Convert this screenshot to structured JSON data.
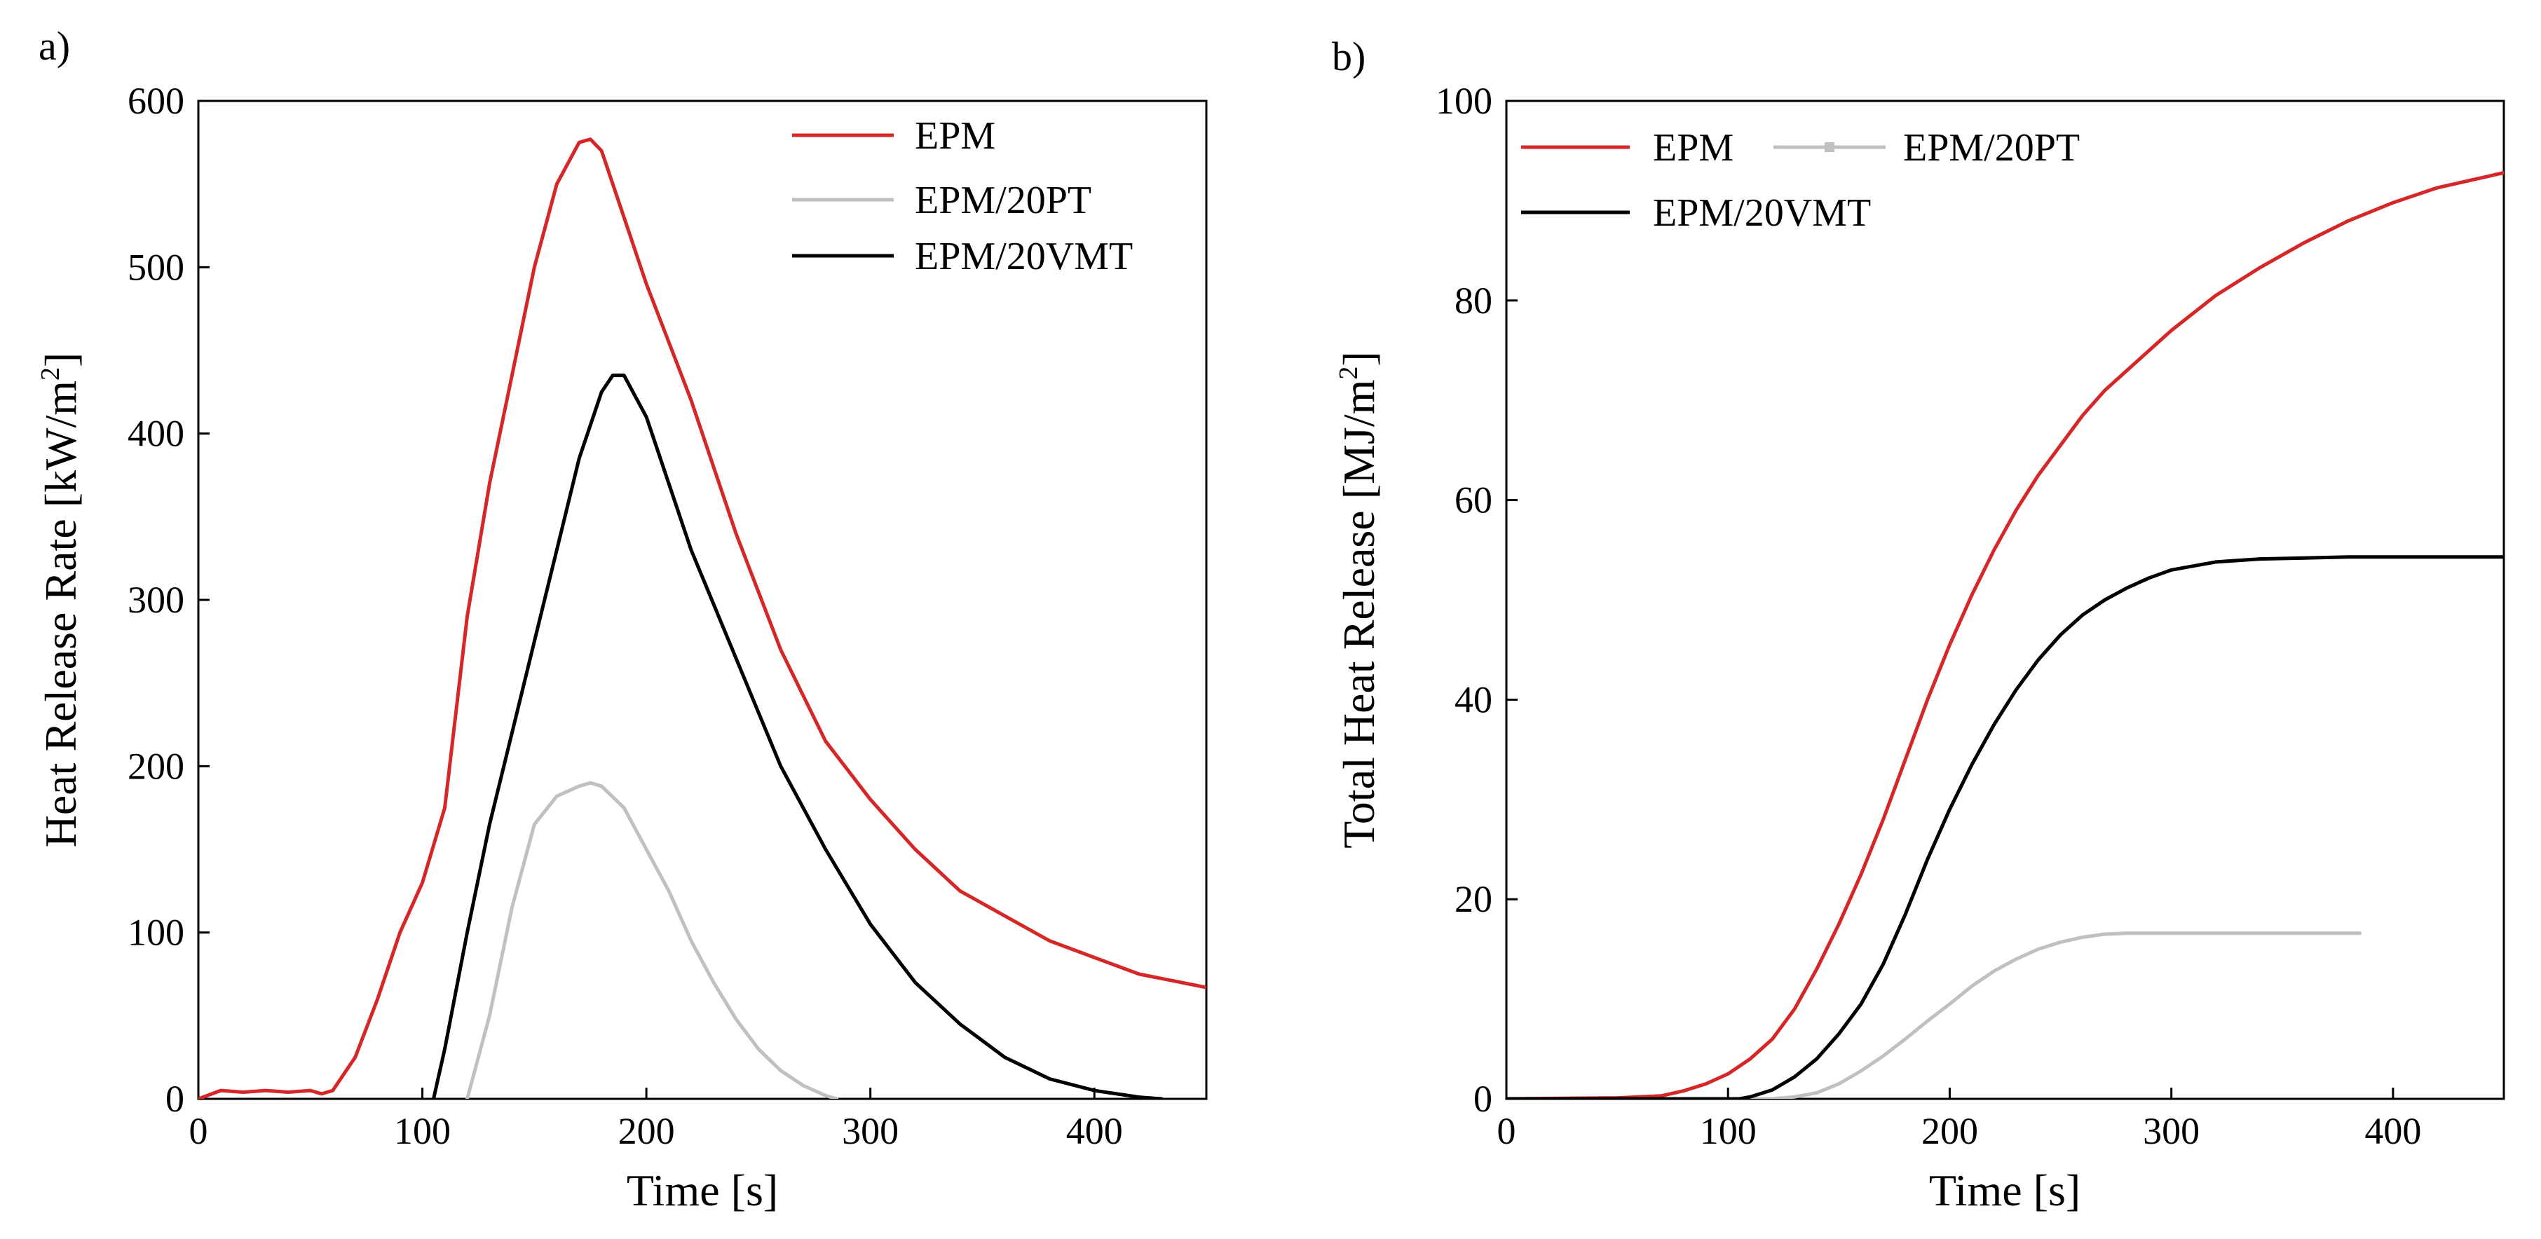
{
  "chart_data": [
    {
      "type": "line",
      "panel_label": "a)",
      "xlabel": "Time [s]",
      "ylabel_main": "Heat Release Rate [kW/m",
      "ylabel_sup": "2",
      "ylabel_end": "]",
      "xlim": [
        0,
        450
      ],
      "ylim": [
        0,
        600
      ],
      "xticks": [
        0,
        100,
        200,
        300,
        400
      ],
      "yticks": [
        0,
        100,
        200,
        300,
        400,
        500,
        600
      ],
      "xtick_labels": [
        "0",
        "100",
        "200",
        "300",
        "400"
      ],
      "ytick_labels": [
        "0",
        "100",
        "200",
        "300",
        "400",
        "500",
        "600"
      ],
      "legend_position": "top-right",
      "series": [
        {
          "name": "EPM",
          "color": "#d62728",
          "x": [
            0,
            10,
            20,
            30,
            40,
            50,
            55,
            60,
            70,
            80,
            90,
            100,
            110,
            120,
            130,
            140,
            150,
            160,
            170,
            175,
            180,
            190,
            200,
            210,
            220,
            240,
            260,
            280,
            300,
            320,
            340,
            360,
            380,
            400,
            420,
            450
          ],
          "y": [
            0,
            5,
            4,
            5,
            4,
            5,
            3,
            5,
            25,
            60,
            100,
            130,
            175,
            290,
            370,
            435,
            500,
            550,
            575,
            577,
            570,
            530,
            490,
            455,
            420,
            340,
            270,
            215,
            180,
            150,
            125,
            110,
            95,
            85,
            75,
            67
          ]
        },
        {
          "name": "EPM/20PT",
          "color": "#c0c0c0",
          "x": [
            120,
            130,
            140,
            150,
            160,
            170,
            175,
            180,
            190,
            200,
            210,
            220,
            230,
            240,
            250,
            260,
            270,
            280,
            285
          ],
          "y": [
            0,
            50,
            115,
            165,
            182,
            188,
            190,
            188,
            175,
            150,
            125,
            95,
            70,
            48,
            30,
            17,
            8,
            2,
            0
          ]
        },
        {
          "name": "EPM/20VMT",
          "color": "#000000",
          "x": [
            105,
            110,
            120,
            130,
            140,
            150,
            160,
            170,
            180,
            185,
            190,
            200,
            210,
            220,
            240,
            260,
            280,
            300,
            320,
            340,
            360,
            380,
            400,
            420,
            430
          ],
          "y": [
            0,
            30,
            100,
            165,
            220,
            275,
            330,
            385,
            425,
            435,
            435,
            410,
            370,
            330,
            265,
            200,
            150,
            105,
            70,
            45,
            25,
            12,
            5,
            1,
            0
          ]
        }
      ]
    },
    {
      "type": "line",
      "panel_label": "b)",
      "xlabel": "Time [s]",
      "ylabel_main": "Total Heat Release [MJ/m",
      "ylabel_sup": "2",
      "ylabel_end": "]",
      "xlim": [
        0,
        450
      ],
      "ylim": [
        0,
        100
      ],
      "xticks": [
        0,
        100,
        200,
        300,
        400
      ],
      "yticks": [
        0,
        20,
        40,
        60,
        80,
        100
      ],
      "xtick_labels": [
        "0",
        "100",
        "200",
        "300",
        "400"
      ],
      "ytick_labels": [
        "0",
        "20",
        "40",
        "60",
        "80",
        "100"
      ],
      "legend_position": "top-left",
      "series": [
        {
          "name": "EPM",
          "color": "#d62728",
          "x": [
            0,
            50,
            70,
            80,
            90,
            100,
            110,
            120,
            130,
            140,
            150,
            160,
            170,
            180,
            190,
            200,
            210,
            220,
            230,
            240,
            250,
            260,
            270,
            280,
            300,
            320,
            340,
            360,
            380,
            400,
            420,
            450
          ],
          "y": [
            0,
            0.1,
            0.3,
            0.8,
            1.5,
            2.5,
            4,
            6,
            9,
            13,
            17.5,
            22.5,
            28,
            34,
            40,
            45.5,
            50.5,
            55,
            59,
            62.5,
            65.5,
            68.5,
            71,
            73,
            77,
            80.5,
            83.3,
            85.8,
            88,
            89.8,
            91.3,
            92.8
          ]
        },
        {
          "name": "EPM/20PT",
          "color": "#c0c0c0",
          "x": [
            0,
            120,
            130,
            140,
            150,
            160,
            170,
            180,
            190,
            200,
            210,
            220,
            230,
            240,
            250,
            260,
            270,
            280,
            300,
            320,
            350,
            385
          ],
          "y": [
            0,
            0,
            0.2,
            0.6,
            1.5,
            2.8,
            4.3,
            6,
            7.8,
            9.5,
            11.3,
            12.8,
            14,
            15,
            15.7,
            16.2,
            16.5,
            16.6,
            16.6,
            16.6,
            16.6,
            16.6
          ]
        },
        {
          "name": "EPM/20VMT",
          "color": "#000000",
          "x": [
            0,
            105,
            110,
            120,
            130,
            140,
            150,
            160,
            170,
            180,
            190,
            200,
            210,
            220,
            230,
            240,
            250,
            260,
            270,
            280,
            290,
            300,
            320,
            340,
            360,
            380,
            400,
            420,
            450
          ],
          "y": [
            0,
            0,
            0.2,
            0.9,
            2.2,
            4,
            6.5,
            9.5,
            13.5,
            18.5,
            24,
            29,
            33.5,
            37.5,
            41,
            44,
            46.5,
            48.5,
            50,
            51.2,
            52.2,
            53,
            53.8,
            54.1,
            54.2,
            54.3,
            54.3,
            54.3,
            54.3
          ]
        }
      ]
    }
  ]
}
